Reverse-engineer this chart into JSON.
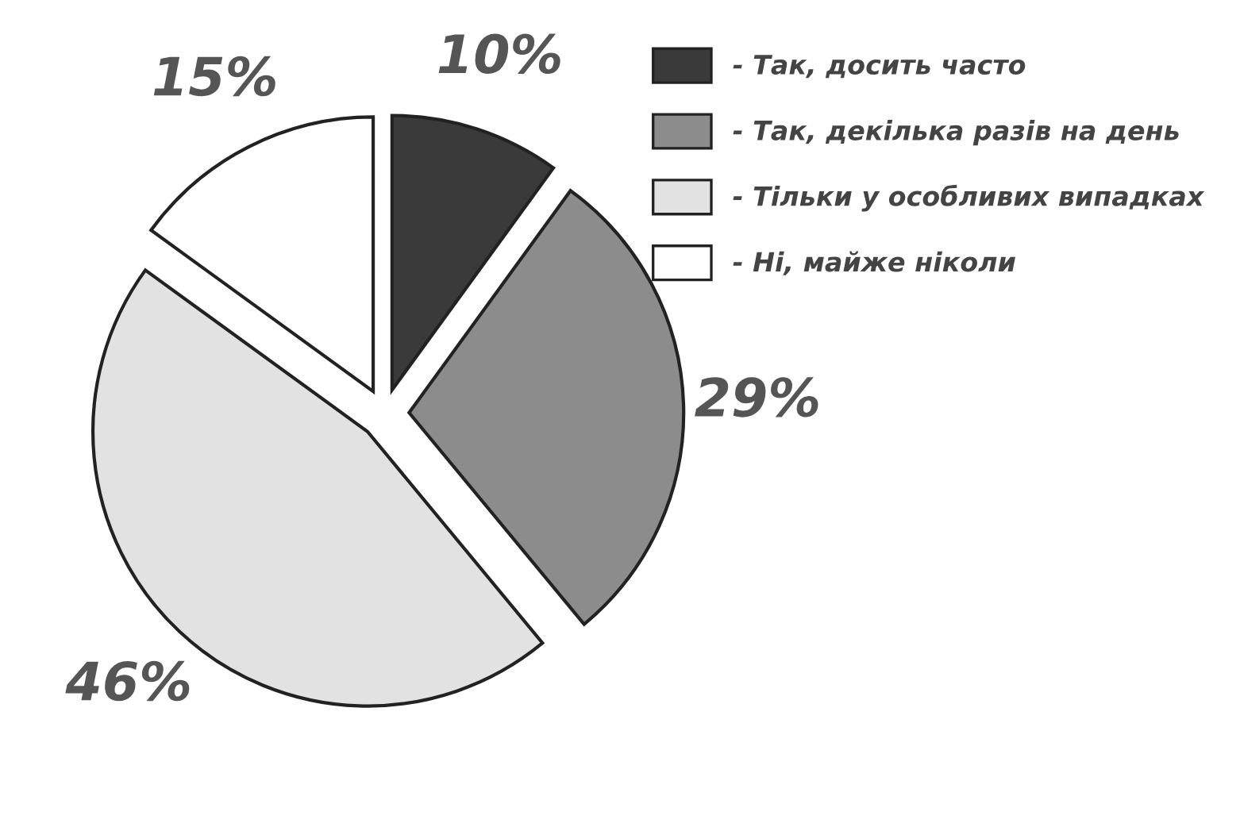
{
  "chart_data": {
    "type": "pie",
    "categories": [
      "- Так, досить часто",
      "- Так, декілька разів на день",
      "- Тільки у особливих випадках",
      "- Ні, майже ніколи"
    ],
    "values": [
      10,
      29,
      46,
      15
    ],
    "colors": [
      "#3a3a3a",
      "#8c8c8c",
      "#e2e2e2",
      "#ffffff"
    ],
    "value_labels": [
      "10%",
      "29%",
      "46%",
      "15%"
    ],
    "legend": "top right"
  }
}
